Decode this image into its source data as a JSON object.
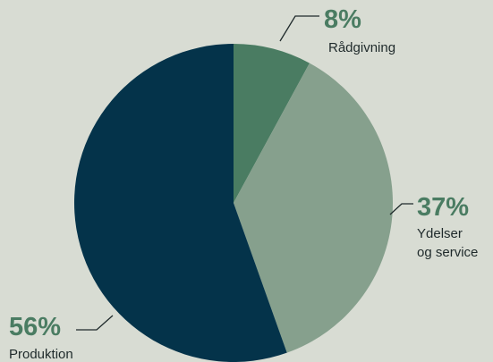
{
  "chart_data": {
    "type": "pie",
    "categories": [
      "Rådgivning",
      "Ydelser og service",
      "Produktion"
    ],
    "values": [
      8,
      37,
      56
    ],
    "labels": [
      "8%",
      "37%",
      "56%"
    ],
    "colors": [
      "#4a7c62",
      "#86a08d",
      "#04334a"
    ],
    "label_color": "#4a7c62",
    "legend": false
  },
  "annotations": [
    {
      "pct": "8%",
      "lines": [
        "Rådgivning"
      ]
    },
    {
      "pct": "37%",
      "lines": [
        "Ydelser",
        "og service"
      ]
    },
    {
      "pct": "56%",
      "lines": [
        "Produktion"
      ]
    }
  ]
}
